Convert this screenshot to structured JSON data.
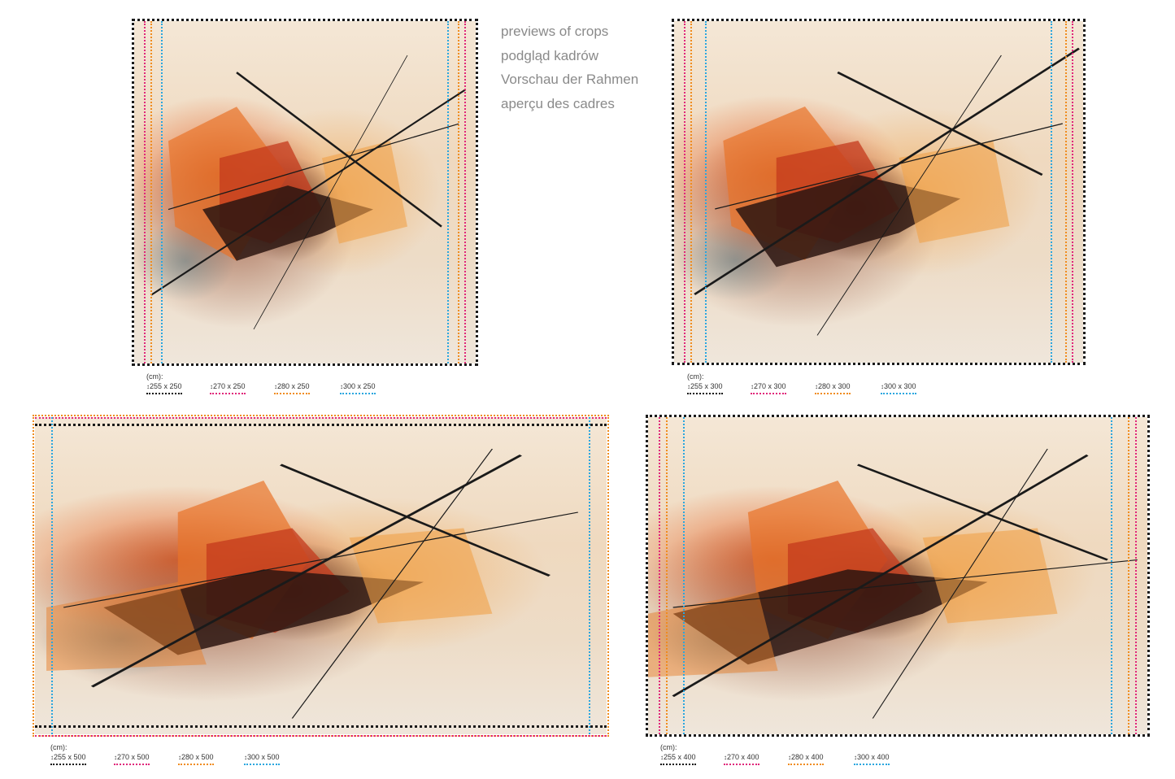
{
  "heading": {
    "lines": [
      "previews of crops",
      "podgląd kadrów",
      "Vorschau der Rahmen",
      "aperçu des cadres"
    ]
  },
  "colors": {
    "black": "#1a1a1a",
    "pink": "#e0267a",
    "orange": "#f08c1e",
    "blue": "#2aa6df"
  },
  "panels": [
    {
      "unit": "(cm):",
      "sizes": [
        "255 x 250",
        "270 x 250",
        "280 x 250",
        "300 x 250"
      ]
    },
    {
      "unit": "(cm):",
      "sizes": [
        "255 x 300",
        "270 x 300",
        "280 x 300",
        "300 x 300"
      ]
    },
    {
      "unit": "(cm):",
      "sizes": [
        "255 x 500",
        "270 x 500",
        "280 x 500",
        "300 x 500"
      ]
    },
    {
      "unit": "(cm):",
      "sizes": [
        "255 x 400",
        "270 x 400",
        "280 x 400",
        "300 x 400"
      ]
    }
  ]
}
